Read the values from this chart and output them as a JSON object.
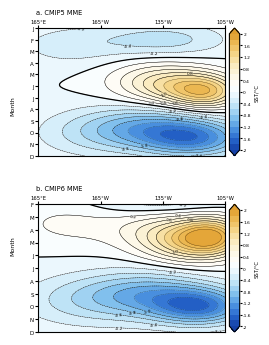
{
  "title_a": "a. CMIP5 MME",
  "title_b": "b. CMIP6 MME",
  "xlabel_ticks": [
    "165°E",
    "165°W",
    "135°W",
    "105°W"
  ],
  "ylabel_ticks_a": [
    "J",
    "F",
    "M",
    "A",
    "M",
    "J",
    "J",
    "A",
    "S",
    "O",
    "N",
    "D"
  ],
  "ylabel_ticks_b": [
    "F",
    "M",
    "A",
    "M",
    "J",
    "J",
    "A",
    "S",
    "O",
    "N",
    "D"
  ],
  "clim": [
    -2.0,
    2.0
  ],
  "cbar_ticks": [
    2.0,
    1.6,
    1.2,
    0.8,
    0.4,
    0.0,
    -0.4,
    -0.8,
    -1.2,
    -1.6,
    -2.0
  ],
  "contour_levels": [
    -2.0,
    -1.8,
    -1.6,
    -1.4,
    -1.2,
    -1.0,
    -0.8,
    -0.6,
    -0.4,
    -0.2,
    0.0,
    0.2,
    0.4,
    0.6,
    0.8,
    1.0,
    1.2,
    1.4,
    1.6,
    1.8,
    2.0
  ],
  "background_color": "#ffffff",
  "ylabel": "Month",
  "cbar_label": "SST/°C"
}
